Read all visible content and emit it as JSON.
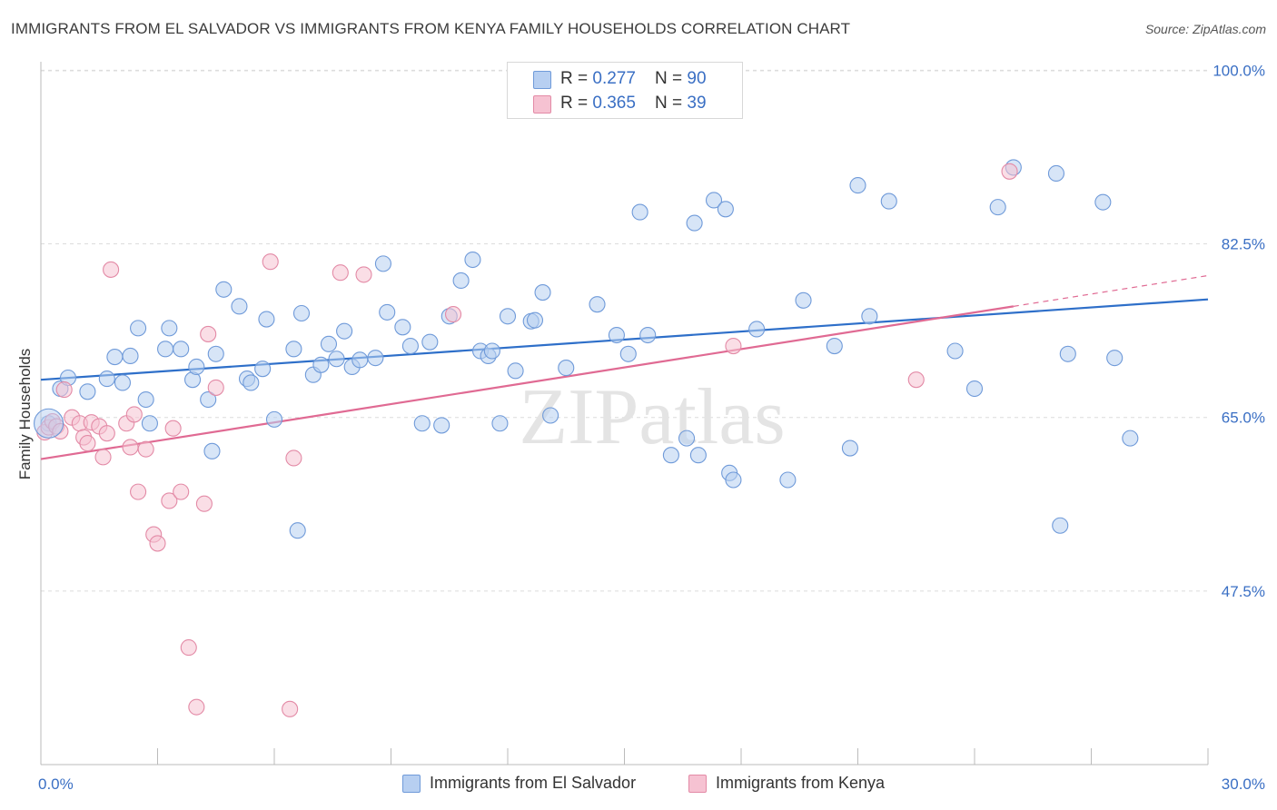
{
  "title": "IMMIGRANTS FROM EL SALVADOR VS IMMIGRANTS FROM KENYA FAMILY HOUSEHOLDS CORRELATION CHART",
  "source": "Source: ZipAtlas.com",
  "legend": {
    "rows": [
      {
        "r_label": "R = ",
        "r_value": "0.277",
        "n_label": "N = ",
        "n_value": "90"
      },
      {
        "r_label": "R = ",
        "r_value": "0.365",
        "n_label": "N = ",
        "n_value": "39"
      }
    ]
  },
  "colors": {
    "blue_fill": "#b7cff1",
    "blue_stroke": "#6f9ad9",
    "blue_line": "#2e6fc9",
    "pink_fill": "#f6c2d2",
    "pink_stroke": "#e38aa6",
    "pink_line": "#e06a93",
    "tick_label": "#3a6fc4",
    "grid": "#dcdcdc"
  },
  "chart_data": {
    "type": "scatter",
    "title": "IMMIGRANTS FROM EL SALVADOR VS IMMIGRANTS FROM KENYA FAMILY HOUSEHOLDS CORRELATION CHART",
    "xlabel": "",
    "ylabel": "Family Households",
    "xlim": [
      0,
      30
    ],
    "ylim": [
      30,
      101.5
    ],
    "x_tick_labels": [
      "0.0%",
      "30.0%"
    ],
    "y_ticks": [
      47.5,
      65.0,
      82.5,
      100.0
    ],
    "y_tick_labels": [
      "47.5%",
      "65.0%",
      "82.5%",
      "100.0%"
    ],
    "grid": true,
    "legend_placement": "top-center",
    "watermark": "ZIPatlas",
    "series": [
      {
        "name": "Immigrants from El Salvador",
        "color": "#6f9ad9",
        "r": 0.277,
        "n": 90,
        "trend": {
          "x": [
            0,
            30
          ],
          "y": [
            68.8,
            76.9
          ]
        },
        "points": [
          [
            0.2,
            64.4
          ],
          [
            0.5,
            67.9
          ],
          [
            0.7,
            69.0
          ],
          [
            1.2,
            67.6
          ],
          [
            1.7,
            68.9
          ],
          [
            1.9,
            71.1
          ],
          [
            2.1,
            68.5
          ],
          [
            2.3,
            71.2
          ],
          [
            2.5,
            74.0
          ],
          [
            2.7,
            66.8
          ],
          [
            2.8,
            64.4
          ],
          [
            3.2,
            71.9
          ],
          [
            3.3,
            74.0
          ],
          [
            3.6,
            71.9
          ],
          [
            3.9,
            68.8
          ],
          [
            4.0,
            70.1
          ],
          [
            4.3,
            66.8
          ],
          [
            4.4,
            61.6
          ],
          [
            4.5,
            71.4
          ],
          [
            4.7,
            77.9
          ],
          [
            5.1,
            76.2
          ],
          [
            5.3,
            68.9
          ],
          [
            5.4,
            68.5
          ],
          [
            5.7,
            69.9
          ],
          [
            5.8,
            74.9
          ],
          [
            6.0,
            64.8
          ],
          [
            6.5,
            71.9
          ],
          [
            6.6,
            53.6
          ],
          [
            6.7,
            75.5
          ],
          [
            7.0,
            69.3
          ],
          [
            7.2,
            70.3
          ],
          [
            7.4,
            72.4
          ],
          [
            7.6,
            70.9
          ],
          [
            7.8,
            73.7
          ],
          [
            8.0,
            70.1
          ],
          [
            8.2,
            70.8
          ],
          [
            8.6,
            71.0
          ],
          [
            8.8,
            80.5
          ],
          [
            8.9,
            75.6
          ],
          [
            9.3,
            74.1
          ],
          [
            9.5,
            72.2
          ],
          [
            9.8,
            64.4
          ],
          [
            10.0,
            72.6
          ],
          [
            10.3,
            64.2
          ],
          [
            10.5,
            75.2
          ],
          [
            10.8,
            78.8
          ],
          [
            11.1,
            80.9
          ],
          [
            11.3,
            71.7
          ],
          [
            11.5,
            71.2
          ],
          [
            11.6,
            71.7
          ],
          [
            11.8,
            64.4
          ],
          [
            12.0,
            75.2
          ],
          [
            12.2,
            69.7
          ],
          [
            12.4,
            96.1
          ],
          [
            12.6,
            74.7
          ],
          [
            12.7,
            74.8
          ],
          [
            12.9,
            77.6
          ],
          [
            13.1,
            65.2
          ],
          [
            13.5,
            70.0
          ],
          [
            14.3,
            76.4
          ],
          [
            14.8,
            73.3
          ],
          [
            15.1,
            71.4
          ],
          [
            15.4,
            85.7
          ],
          [
            15.6,
            73.3
          ],
          [
            16.2,
            61.2
          ],
          [
            16.6,
            62.9
          ],
          [
            16.8,
            84.6
          ],
          [
            16.9,
            61.2
          ],
          [
            17.3,
            86.9
          ],
          [
            17.6,
            86.0
          ],
          [
            17.7,
            59.4
          ],
          [
            17.8,
            58.7
          ],
          [
            18.4,
            73.9
          ],
          [
            19.2,
            58.7
          ],
          [
            19.6,
            76.8
          ],
          [
            20.4,
            72.2
          ],
          [
            20.8,
            61.9
          ],
          [
            21.0,
            88.4
          ],
          [
            21.3,
            75.2
          ],
          [
            21.8,
            86.8
          ],
          [
            23.5,
            71.7
          ],
          [
            24.0,
            67.9
          ],
          [
            24.6,
            86.2
          ],
          [
            25.0,
            90.2
          ],
          [
            26.1,
            89.6
          ],
          [
            26.2,
            54.1
          ],
          [
            26.4,
            71.4
          ],
          [
            27.3,
            86.7
          ],
          [
            27.6,
            71.0
          ],
          [
            28.0,
            62.9
          ]
        ]
      },
      {
        "name": "Immigrants from Kenya",
        "color": "#e38aa6",
        "r": 0.365,
        "n": 39,
        "trend": {
          "x": [
            0,
            25
          ],
          "y": [
            60.8,
            76.2
          ]
        },
        "trend_dashed_extension": {
          "x": [
            25,
            30
          ],
          "y": [
            76.2,
            79.3
          ]
        },
        "points": [
          [
            0.1,
            63.5
          ],
          [
            0.2,
            64.0
          ],
          [
            0.3,
            64.6
          ],
          [
            0.4,
            64.1
          ],
          [
            0.5,
            63.6
          ],
          [
            0.6,
            67.8
          ],
          [
            0.8,
            65.0
          ],
          [
            1.0,
            64.4
          ],
          [
            1.1,
            63.0
          ],
          [
            1.2,
            62.4
          ],
          [
            1.3,
            64.5
          ],
          [
            1.5,
            64.1
          ],
          [
            1.6,
            61.0
          ],
          [
            1.7,
            63.4
          ],
          [
            1.8,
            79.9
          ],
          [
            2.2,
            64.4
          ],
          [
            2.3,
            62.0
          ],
          [
            2.4,
            65.3
          ],
          [
            2.5,
            57.5
          ],
          [
            2.7,
            61.8
          ],
          [
            2.9,
            53.2
          ],
          [
            3.0,
            52.3
          ],
          [
            3.3,
            56.6
          ],
          [
            3.4,
            63.9
          ],
          [
            3.6,
            57.5
          ],
          [
            3.8,
            41.8
          ],
          [
            4.0,
            35.8
          ],
          [
            4.2,
            56.3
          ],
          [
            4.3,
            73.4
          ],
          [
            4.5,
            68.0
          ],
          [
            5.9,
            80.7
          ],
          [
            6.4,
            35.6
          ],
          [
            6.5,
            60.9
          ],
          [
            7.7,
            79.6
          ],
          [
            8.3,
            79.4
          ],
          [
            10.6,
            75.4
          ],
          [
            17.8,
            72.2
          ],
          [
            22.5,
            68.8
          ],
          [
            24.9,
            89.8
          ]
        ]
      }
    ]
  }
}
